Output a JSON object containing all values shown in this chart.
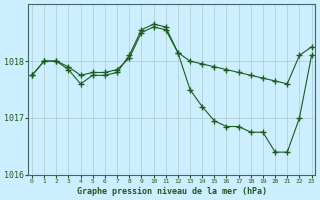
{
  "title": "Graphe pression niveau de la mer (hPa)",
  "background_color": "#cceeff",
  "plot_bg_color": "#cceeff",
  "grid_color": "#aacccc",
  "line_color": "#1a5c1a",
  "hours": [
    0,
    1,
    2,
    3,
    4,
    5,
    6,
    7,
    8,
    9,
    10,
    11,
    12,
    13,
    14,
    15,
    16,
    17,
    18,
    19,
    20,
    21,
    22,
    23
  ],
  "series1": [
    1017.75,
    1018.0,
    1018.0,
    1017.9,
    1017.75,
    1017.8,
    1017.8,
    1017.85,
    1018.05,
    1018.5,
    1018.6,
    1018.55,
    1018.15,
    1018.0,
    1017.95,
    1017.9,
    1017.85,
    1017.8,
    1017.75,
    1017.7,
    1017.65,
    1017.6,
    1018.1,
    1018.25
  ],
  "series2": [
    1017.75,
    1018.0,
    1018.0,
    1017.85,
    1017.6,
    1017.75,
    1017.75,
    1017.8,
    1018.1,
    1018.55,
    1018.65,
    1018.6,
    1018.15,
    1017.5,
    1017.2,
    1016.95,
    1016.85,
    1016.85,
    1016.75,
    1016.75,
    1016.4,
    1016.4,
    1017.0,
    1018.1
  ],
  "ylim": [
    1016.0,
    1019.0
  ],
  "yticks": [
    1016,
    1017,
    1018
  ],
  "xlim": [
    -0.3,
    23.3
  ],
  "xticks": [
    0,
    1,
    2,
    3,
    4,
    5,
    6,
    7,
    8,
    9,
    10,
    11,
    12,
    13,
    14,
    15,
    16,
    17,
    18,
    19,
    20,
    21,
    22,
    23
  ]
}
